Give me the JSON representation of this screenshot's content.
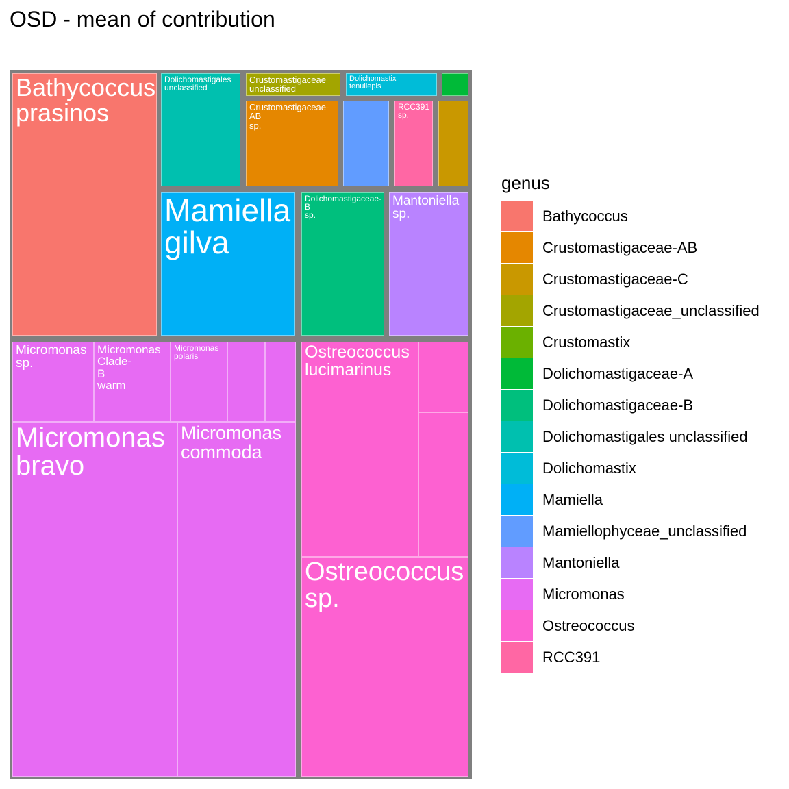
{
  "chart_data": {
    "type": "treemap",
    "title": "OSD - mean of contribution",
    "legend": {
      "title": "genus",
      "position": "right",
      "items": [
        {
          "label": "Bathycoccus",
          "color": "#F8766D"
        },
        {
          "label": "Crustomastigaceae-AB",
          "color": "#E58700"
        },
        {
          "label": "Crustomastigaceae-C",
          "color": "#C99800"
        },
        {
          "label": "Crustomastigaceae_unclassified",
          "color": "#A3A500"
        },
        {
          "label": "Crustomastix",
          "color": "#6BB100"
        },
        {
          "label": "Dolichomastigaceae-A",
          "color": "#00BA38"
        },
        {
          "label": "Dolichomastigaceae-B",
          "color": "#00BF7D"
        },
        {
          "label": "Dolichomastigales unclassified",
          "color": "#00C0AF"
        },
        {
          "label": "Dolichomastix",
          "color": "#00BCD8"
        },
        {
          "label": "Mamiella",
          "color": "#00B0F6"
        },
        {
          "label": "Mamiellophyceae_unclassified",
          "color": "#619CFF"
        },
        {
          "label": "Mantoniella",
          "color": "#B983FF"
        },
        {
          "label": "Micromonas",
          "color": "#E76BF3"
        },
        {
          "label": "Ostreococcus",
          "color": "#FD61D1"
        },
        {
          "label": "RCC391",
          "color": "#FF67A4"
        }
      ]
    },
    "tiles": [
      {
        "label": "Bathycoccus\nprasinos",
        "genus": "Bathycoccus",
        "value": 8.7
      },
      {
        "label": "Dolichomastigales\nunclassified",
        "genus": "Dolichomastigales unclassified",
        "value": 2.7
      },
      {
        "label": "Crustomastigaceae\nunclassified",
        "genus": "Crustomastigaceae_unclassified",
        "value": 0.5
      },
      {
        "label": "Crustomastigaceae-\nAB\nsp.",
        "genus": "Crustomastigaceae-AB",
        "value": 2.0
      },
      {
        "label": "Dolichomastix\ntenuilepis",
        "genus": "Dolichomastix",
        "value": 0.6
      },
      {
        "label": "",
        "genus": "Dolichomastigaceae-A",
        "value": 0.15
      },
      {
        "label": "",
        "genus": "Mamiellophyceae_unclassified",
        "value": 0.9
      },
      {
        "label": "RCC391\nsp.",
        "genus": "RCC391",
        "value": 0.8
      },
      {
        "label": "",
        "genus": "Crustomastigaceae-C",
        "value": 0.6
      },
      {
        "label": "Mamiella\ngilva",
        "genus": "Mamiella",
        "value": 4.0
      },
      {
        "label": "Dolichomastigaceae-\nB\nsp.",
        "genus": "Dolichomastigaceae-B",
        "value": 2.7
      },
      {
        "label": "Mantoniella\nsp.",
        "genus": "Mantoniella",
        "value": 2.5
      },
      {
        "label": "Micromonas\nsp.",
        "genus": "Micromonas",
        "value": 1.8
      },
      {
        "label": "Micromonas\nClade-\nB\nwarm",
        "genus": "Micromonas",
        "value": 1.7
      },
      {
        "label": "Micromonas\npolaris",
        "genus": "Micromonas",
        "value": 1.3
      },
      {
        "label": "",
        "genus": "Micromonas",
        "value": 0.8
      },
      {
        "label": "",
        "genus": "Micromonas",
        "value": 0.7
      },
      {
        "label": "Micromonas\nbravo",
        "genus": "Micromonas",
        "value": 12.0
      },
      {
        "label": "Micromonas\ncommoda",
        "genus": "Micromonas",
        "value": 8.3
      },
      {
        "label": "Ostreococcus\nlucimarinus",
        "genus": "Ostreococcus",
        "value": 4.8
      },
      {
        "label": "",
        "genus": "Ostreococcus",
        "value": 1.0
      },
      {
        "label": "",
        "genus": "Ostreococcus",
        "value": 2.0
      },
      {
        "label": "Ostreococcus\nsp.",
        "genus": "Ostreococcus",
        "value": 7.3
      }
    ]
  }
}
